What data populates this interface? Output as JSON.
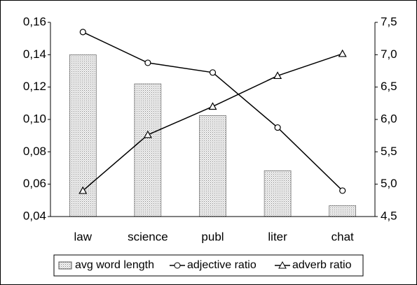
{
  "chart_data": {
    "type": "bar",
    "categories": [
      "law",
      "science",
      "publ",
      "liter",
      "chat"
    ],
    "series": [
      {
        "name": "avg word length",
        "type": "bar",
        "axis": "y2",
        "color": "#d9d9d9",
        "values": [
          7.0,
          6.55,
          6.06,
          5.21,
          4.67
        ]
      },
      {
        "name": "adjective ratio",
        "type": "line",
        "marker": "circle",
        "color": "#000000",
        "values": [
          0.154,
          0.135,
          0.129,
          0.095,
          0.056
        ]
      },
      {
        "name": "adverb ratio",
        "type": "line",
        "marker": "triangle",
        "color": "#000000",
        "values": [
          0.056,
          0.0905,
          0.108,
          0.127,
          0.1406
        ]
      }
    ],
    "ylim": [
      0.04,
      0.16
    ],
    "yticks": [
      {
        "value": 0.04,
        "label": "0,04"
      },
      {
        "value": 0.06,
        "label": "0,06"
      },
      {
        "value": 0.08,
        "label": "0,08"
      },
      {
        "value": 0.1,
        "label": "0,10"
      },
      {
        "value": 0.12,
        "label": "0,12"
      },
      {
        "value": 0.14,
        "label": "0,14"
      },
      {
        "value": 0.16,
        "label": "0,16"
      }
    ],
    "y2lim": [
      4.5,
      7.5
    ],
    "y2ticks": [
      {
        "value": 4.5,
        "label": "4,5"
      },
      {
        "value": 5,
        "label": "5,0"
      },
      {
        "value": 5.5,
        "label": "5,5"
      },
      {
        "value": 6,
        "label": "6,0"
      },
      {
        "value": 6.5,
        "label": "6,5"
      },
      {
        "value": 7,
        "label": "7,0"
      },
      {
        "value": 7.5,
        "label": "7,5"
      }
    ],
    "legend": "bottom"
  }
}
